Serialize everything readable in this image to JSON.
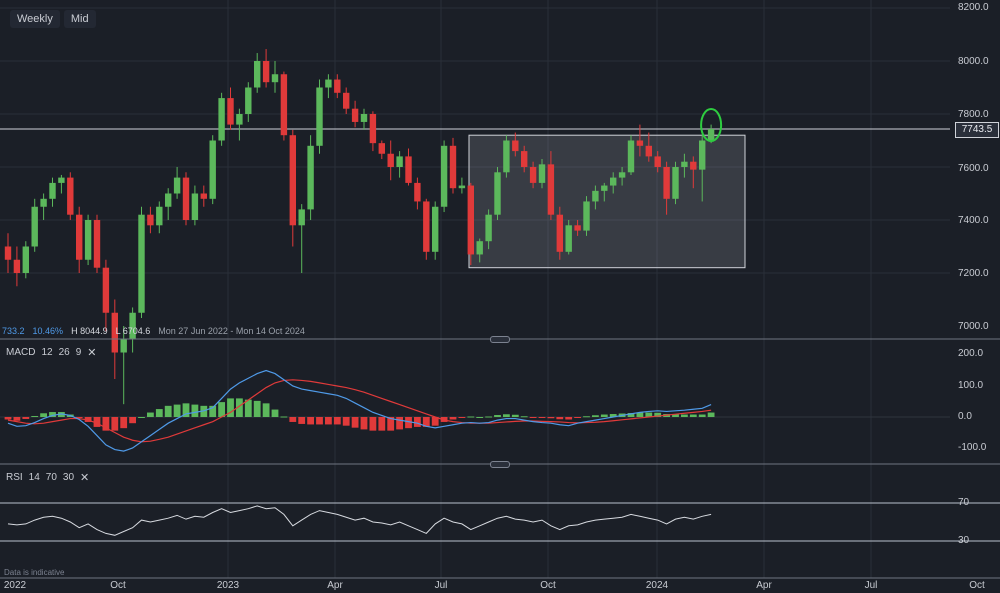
{
  "toolbar": {
    "timeframe": "Weekly",
    "price_type": "Mid"
  },
  "stats": {
    "change": "733.2",
    "change_pct": "10.46%",
    "high": "H 8044.9",
    "low": "L 6704.6",
    "range": "Mon 27 Jun 2022 - Mon 14 Oct 2024"
  },
  "price_axis": {
    "labels": [
      "8200.0",
      "8000.0",
      "7800.0",
      "7600.0",
      "7400.0",
      "7200.0",
      "7000.0"
    ],
    "current_price": "7743.5"
  },
  "time_axis": {
    "labels": [
      "2022",
      "Oct",
      "2023",
      "Apr",
      "Jul",
      "Oct",
      "2024",
      "Apr",
      "Jul",
      "Oct"
    ]
  },
  "macd": {
    "label": "MACD",
    "params": [
      "12",
      "26",
      "9"
    ],
    "axis_labels": [
      "200.0",
      "100.0",
      "0.0",
      "-100.0"
    ]
  },
  "rsi": {
    "label": "RSI",
    "params": [
      "14",
      "70",
      "30"
    ],
    "axis_labels": [
      "70",
      "30"
    ]
  },
  "note": "Data is indicative",
  "colors": {
    "background": "#1b1f27",
    "up": "#5cb85c",
    "down": "#e03a3a",
    "macd_line": "#4f9ae8",
    "signal_line": "#e03a3a",
    "rsi_line": "#d7dae0",
    "highlight": "#2ecc40"
  },
  "chart_data": [
    {
      "type": "candlestick",
      "panel": "price",
      "ylim": [
        7000,
        8200
      ],
      "current_price": 7743.5,
      "horizontal_level": 7743.5,
      "consolidation_range": [
        7220,
        7720
      ],
      "candles": [
        [
          7300,
          7350,
          7200,
          7250
        ],
        [
          7250,
          7300,
          7150,
          7200
        ],
        [
          7200,
          7320,
          7180,
          7300
        ],
        [
          7300,
          7480,
          7280,
          7450
        ],
        [
          7450,
          7500,
          7400,
          7480
        ],
        [
          7480,
          7560,
          7450,
          7540
        ],
        [
          7540,
          7570,
          7500,
          7560
        ],
        [
          7560,
          7580,
          7400,
          7420
        ],
        [
          7420,
          7450,
          7200,
          7250
        ],
        [
          7250,
          7420,
          7230,
          7400
        ],
        [
          7400,
          7420,
          7200,
          7220
        ],
        [
          7220,
          7250,
          6980,
          7050
        ],
        [
          7050,
          7100,
          6800,
          6900
        ],
        [
          6900,
          7000,
          6705,
          6950
        ],
        [
          6950,
          7070,
          6900,
          7050
        ],
        [
          7050,
          7450,
          7030,
          7420
        ],
        [
          7420,
          7450,
          7350,
          7380
        ],
        [
          7380,
          7470,
          7350,
          7450
        ],
        [
          7450,
          7520,
          7400,
          7500
        ],
        [
          7500,
          7600,
          7480,
          7560
        ],
        [
          7560,
          7580,
          7380,
          7400
        ],
        [
          7400,
          7530,
          7380,
          7500
        ],
        [
          7500,
          7530,
          7450,
          7480
        ],
        [
          7480,
          7720,
          7460,
          7700
        ],
        [
          7700,
          7880,
          7680,
          7860
        ],
        [
          7860,
          7900,
          7740,
          7760
        ],
        [
          7760,
          7820,
          7700,
          7800
        ],
        [
          7800,
          7920,
          7770,
          7900
        ],
        [
          7900,
          8030,
          7880,
          8000
        ],
        [
          8000,
          8045,
          7900,
          7920
        ],
        [
          7920,
          8000,
          7880,
          7950
        ],
        [
          7950,
          7960,
          7700,
          7720
        ],
        [
          7720,
          7740,
          7300,
          7380
        ],
        [
          7380,
          7460,
          7200,
          7440
        ],
        [
          7440,
          7720,
          7400,
          7680
        ],
        [
          7680,
          7930,
          7650,
          7900
        ],
        [
          7900,
          7950,
          7860,
          7930
        ],
        [
          7930,
          7950,
          7860,
          7880
        ],
        [
          7880,
          7900,
          7800,
          7820
        ],
        [
          7820,
          7850,
          7750,
          7770
        ],
        [
          7770,
          7820,
          7740,
          7800
        ],
        [
          7800,
          7810,
          7660,
          7690
        ],
        [
          7690,
          7700,
          7630,
          7650
        ],
        [
          7650,
          7700,
          7550,
          7600
        ],
        [
          7600,
          7660,
          7560,
          7640
        ],
        [
          7640,
          7670,
          7530,
          7540
        ],
        [
          7540,
          7560,
          7440,
          7470
        ],
        [
          7470,
          7480,
          7250,
          7280
        ],
        [
          7280,
          7470,
          7250,
          7450
        ],
        [
          7450,
          7700,
          7430,
          7680
        ],
        [
          7680,
          7710,
          7500,
          7520
        ],
        [
          7520,
          7560,
          7500,
          7530
        ],
        [
          7530,
          7540,
          7230,
          7270
        ],
        [
          7270,
          7330,
          7240,
          7320
        ],
        [
          7320,
          7440,
          7290,
          7420
        ],
        [
          7420,
          7600,
          7400,
          7580
        ],
        [
          7580,
          7720,
          7560,
          7700
        ],
        [
          7700,
          7730,
          7640,
          7660
        ],
        [
          7660,
          7680,
          7580,
          7600
        ],
        [
          7600,
          7620,
          7520,
          7540
        ],
        [
          7540,
          7630,
          7520,
          7610
        ],
        [
          7610,
          7660,
          7400,
          7420
        ],
        [
          7420,
          7450,
          7250,
          7280
        ],
        [
          7280,
          7400,
          7270,
          7380
        ],
        [
          7380,
          7400,
          7340,
          7360
        ],
        [
          7360,
          7490,
          7340,
          7470
        ],
        [
          7470,
          7530,
          7440,
          7510
        ],
        [
          7510,
          7540,
          7470,
          7530
        ],
        [
          7530,
          7580,
          7500,
          7560
        ],
        [
          7560,
          7600,
          7530,
          7580
        ],
        [
          7580,
          7720,
          7570,
          7700
        ],
        [
          7700,
          7760,
          7640,
          7680
        ],
        [
          7680,
          7730,
          7620,
          7640
        ],
        [
          7640,
          7660,
          7580,
          7600
        ],
        [
          7600,
          7620,
          7420,
          7480
        ],
        [
          7480,
          7620,
          7460,
          7600
        ],
        [
          7600,
          7650,
          7560,
          7620
        ],
        [
          7620,
          7640,
          7520,
          7590
        ],
        [
          7590,
          7720,
          7470,
          7700
        ],
        [
          7700,
          7760,
          7690,
          7743.5
        ]
      ]
    },
    {
      "type": "bar+line",
      "panel": "MACD",
      "ylim": [
        -100,
        200
      ],
      "series": [
        {
          "name": "MACD",
          "values": [
            -20,
            -30,
            -28,
            -18,
            -5,
            5,
            10,
            5,
            -8,
            -30,
            -60,
            -90,
            -105,
            -110,
            -100,
            -80,
            -60,
            -40,
            -20,
            -5,
            10,
            15,
            20,
            30,
            60,
            90,
            110,
            125,
            140,
            150,
            140,
            120,
            100,
            90,
            85,
            80,
            75,
            70,
            60,
            45,
            30,
            15,
            5,
            -5,
            -10,
            -15,
            -20,
            -30,
            -35,
            -30,
            -25,
            -20,
            -18,
            -20,
            -18,
            -10,
            -5,
            -5,
            -10,
            -15,
            -18,
            -20,
            -25,
            -28,
            -20,
            -15,
            -10,
            -5,
            0,
            5,
            10,
            15,
            18,
            20,
            18,
            20,
            22,
            25,
            28,
            40
          ]
        },
        {
          "name": "Signal",
          "values": [
            -10,
            -15,
            -20,
            -22,
            -20,
            -15,
            -10,
            -5,
            -5,
            -10,
            -20,
            -35,
            -50,
            -65,
            -75,
            -80,
            -78,
            -72,
            -65,
            -55,
            -45,
            -35,
            -25,
            -15,
            0,
            15,
            35,
            55,
            75,
            95,
            110,
            118,
            120,
            118,
            115,
            110,
            105,
            100,
            95,
            88,
            80,
            70,
            60,
            50,
            40,
            30,
            20,
            10,
            0,
            -10,
            -15,
            -18,
            -20,
            -20,
            -20,
            -18,
            -16,
            -14,
            -13,
            -13,
            -14,
            -15,
            -16,
            -18,
            -19,
            -18,
            -17,
            -15,
            -12,
            -9,
            -6,
            -3,
            0,
            3,
            6,
            9,
            12,
            15,
            18,
            22
          ]
        }
      ]
    },
    {
      "type": "line",
      "panel": "RSI",
      "ylim": [
        30,
        70
      ],
      "series": [
        {
          "name": "RSI",
          "values": [
            48,
            47,
            48,
            52,
            55,
            56,
            54,
            50,
            44,
            48,
            42,
            38,
            36,
            40,
            44,
            52,
            50,
            52,
            54,
            57,
            53,
            56,
            55,
            60,
            64,
            60,
            62,
            64,
            67,
            64,
            65,
            58,
            46,
            52,
            58,
            62,
            60,
            58,
            55,
            52,
            54,
            50,
            49,
            47,
            50,
            46,
            42,
            38,
            48,
            54,
            50,
            48,
            42,
            46,
            50,
            54,
            56,
            53,
            52,
            50,
            52,
            46,
            42,
            46,
            47,
            50,
            52,
            53,
            54,
            55,
            58,
            56,
            54,
            52,
            48,
            53,
            55,
            53,
            56,
            58
          ]
        }
      ]
    }
  ]
}
